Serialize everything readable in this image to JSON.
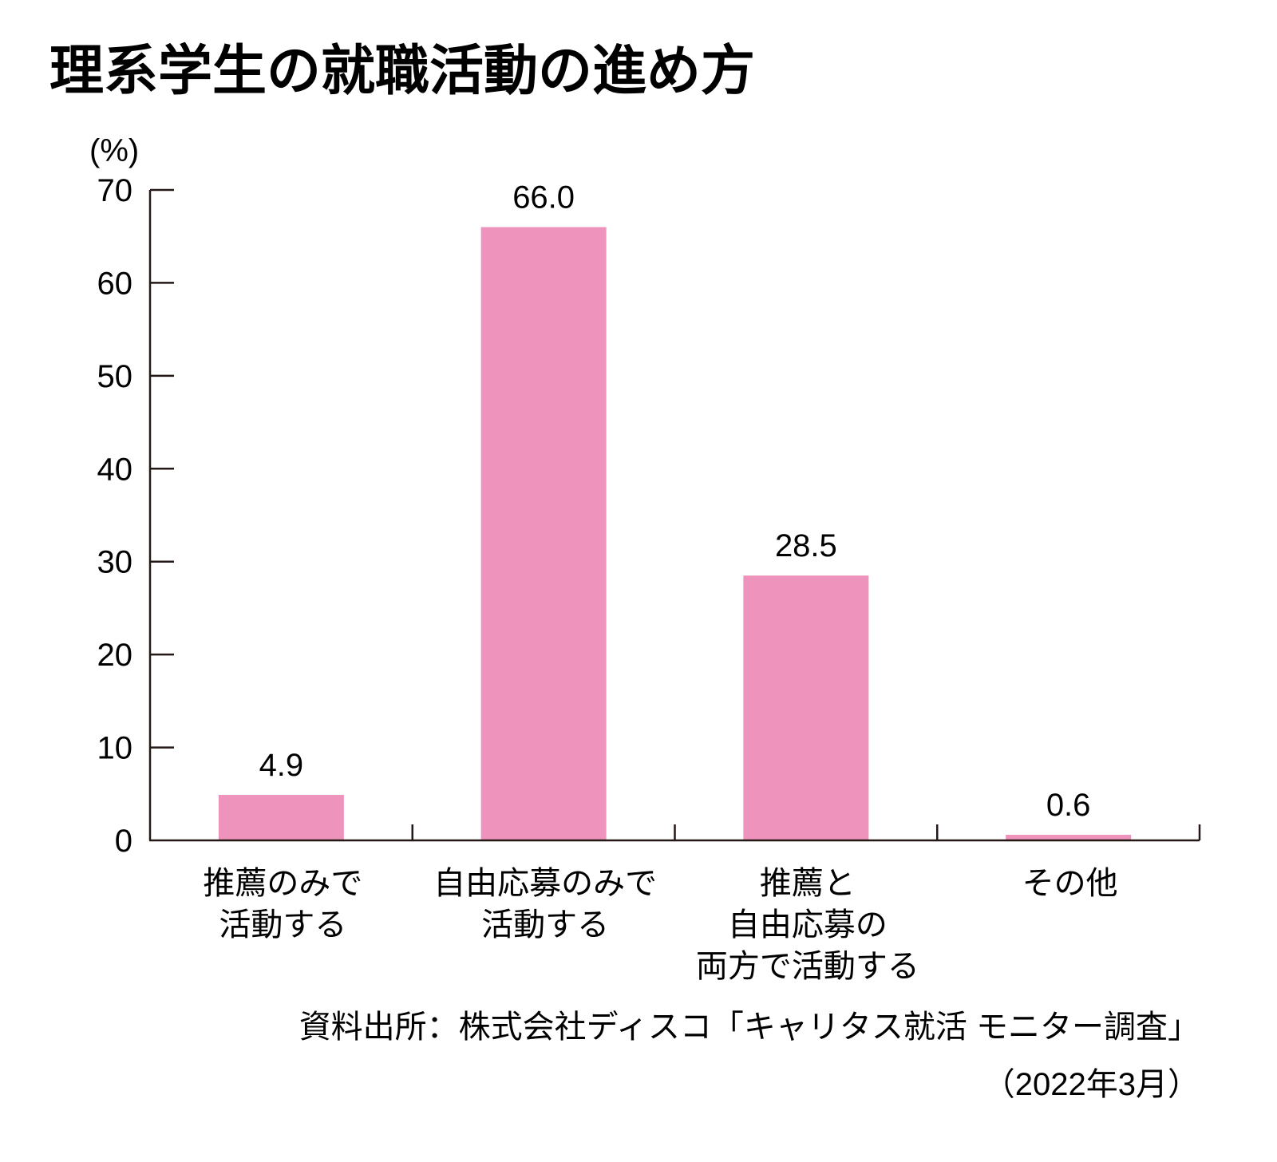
{
  "chart_data": {
    "type": "bar",
    "title": "理系学生の就職活動の進め方",
    "ylabel": "(%)",
    "xlabel": "",
    "ylim": [
      0,
      70
    ],
    "yticks": [
      0,
      10,
      20,
      30,
      40,
      50,
      60,
      70
    ],
    "grid": false,
    "categories": [
      [
        "推薦のみで",
        "活動する"
      ],
      [
        "自由応募のみで",
        "活動する"
      ],
      [
        "推薦と",
        "自由応募の",
        "両方で活動する"
      ],
      [
        "その他"
      ]
    ],
    "values": [
      4.9,
      66.0,
      28.5,
      0.6
    ],
    "value_labels": [
      "4.9",
      "66.0",
      "28.5",
      "0.6"
    ],
    "bar_color": "#EE93BB",
    "source": "資料出所：株式会社ディスコ「キャリタス就活 モニター調査」",
    "source_date": "（2022年3月）"
  }
}
